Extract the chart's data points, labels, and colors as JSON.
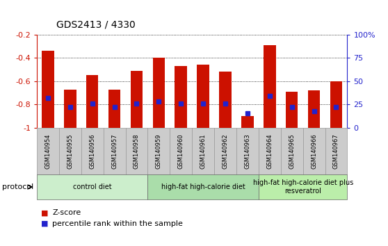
{
  "title": "GDS2413 / 4330",
  "samples": [
    "GSM140954",
    "GSM140955",
    "GSM140956",
    "GSM140957",
    "GSM140958",
    "GSM140959",
    "GSM140960",
    "GSM140961",
    "GSM140962",
    "GSM140963",
    "GSM140964",
    "GSM140965",
    "GSM140966",
    "GSM140967"
  ],
  "zscore": [
    -0.34,
    -0.67,
    -0.55,
    -0.67,
    -0.51,
    -0.4,
    -0.47,
    -0.46,
    -0.52,
    -0.9,
    -0.29,
    -0.69,
    -0.68,
    -0.6
  ],
  "percentile_pct": [
    32,
    22,
    26,
    22,
    26,
    28,
    26,
    26,
    26,
    16,
    34,
    22,
    18,
    22
  ],
  "bar_color": "#cc1100",
  "dot_color": "#2222cc",
  "ylim_left": [
    -1.0,
    -0.2
  ],
  "ylim_right": [
    0,
    100
  ],
  "yticks_left": [
    -1.0,
    -0.8,
    -0.6,
    -0.4,
    -0.2
  ],
  "yticks_right": [
    0,
    25,
    50,
    75,
    100
  ],
  "ytick_labels_left": [
    "-1",
    "-0.8",
    "-0.6",
    "-0.4",
    "-0.2"
  ],
  "ytick_labels_right": [
    "0",
    "25",
    "50",
    "75",
    "100%"
  ],
  "groups": [
    {
      "label": "control diet",
      "start": 0,
      "end": 4,
      "color": "#cceecc"
    },
    {
      "label": "high-fat high-calorie diet",
      "start": 5,
      "end": 9,
      "color": "#aaddaa"
    },
    {
      "label": "high-fat high-calorie diet plus\nresveratrol",
      "start": 10,
      "end": 13,
      "color": "#bbeeaa"
    }
  ],
  "protocol_label": "protocol",
  "legend_zscore": "Z-score",
  "legend_percentile": "percentile rank within the sample",
  "tick_bg_color": "#cccccc",
  "tick_border_color": "#999999",
  "group_border_color": "#666666"
}
